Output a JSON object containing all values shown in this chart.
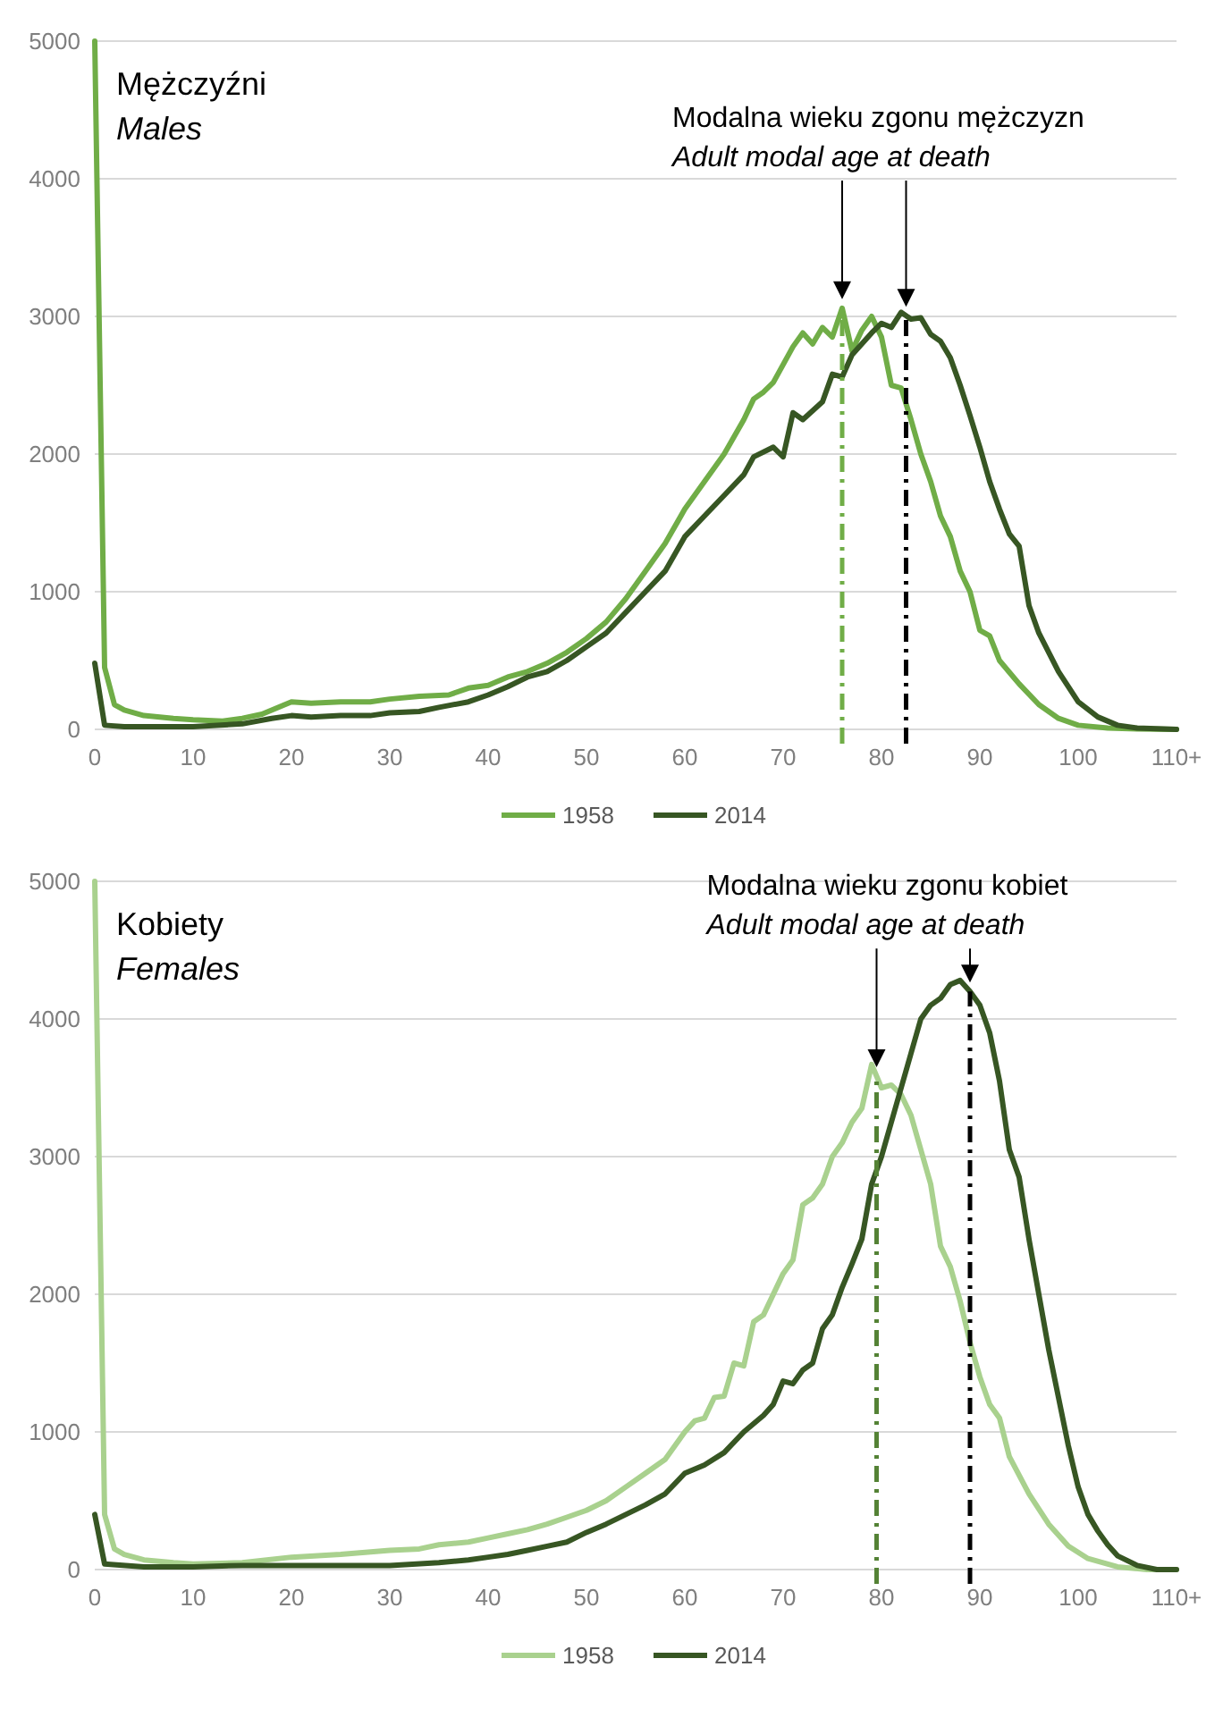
{
  "chart_data": [
    {
      "type": "line",
      "title": "Mężczyźni",
      "subtitle": "Males",
      "annotations": [
        "Modalna wieku zgonu mężczyzn",
        "Adult modal age at death"
      ],
      "xlim": [
        0,
        110
      ],
      "xticks": [
        0,
        10,
        20,
        30,
        40,
        50,
        60,
        70,
        80,
        90,
        100,
        {
          "value": 110,
          "label": "110+"
        }
      ],
      "ylim": [
        0,
        5000
      ],
      "yticks": [
        0,
        1000,
        2000,
        3000,
        4000,
        5000
      ],
      "grid": "y",
      "legend": "bottom",
      "line_style": "solid",
      "marker": "none",
      "series": [
        {
          "name": "1958",
          "color": "#70ad47",
          "x": [
            0,
            1,
            2,
            3,
            5,
            8,
            10,
            13,
            15,
            17,
            20,
            22,
            25,
            28,
            30,
            33,
            36,
            38,
            40,
            42,
            44,
            46,
            48,
            50,
            52,
            54,
            56,
            58,
            60,
            62,
            64,
            66,
            67,
            68,
            69,
            70,
            71,
            72,
            73,
            74,
            75,
            76,
            77,
            78,
            79,
            80,
            81,
            82,
            83,
            84,
            85,
            86,
            87,
            88,
            89,
            90,
            91,
            92,
            94,
            96,
            98,
            100,
            103,
            106,
            110
          ],
          "values": [
            5000,
            450,
            180,
            140,
            100,
            80,
            70,
            60,
            80,
            110,
            200,
            190,
            200,
            200,
            220,
            240,
            250,
            300,
            320,
            380,
            420,
            480,
            560,
            660,
            780,
            950,
            1150,
            1350,
            1600,
            1800,
            2000,
            2250,
            2400,
            2450,
            2520,
            2650,
            2780,
            2880,
            2800,
            2920,
            2850,
            3060,
            2750,
            2900,
            3000,
            2850,
            2500,
            2480,
            2250,
            2000,
            1800,
            1550,
            1400,
            1150,
            1000,
            720,
            680,
            500,
            330,
            180,
            80,
            30,
            10,
            3,
            0
          ]
        },
        {
          "name": "2014",
          "color": "#375623",
          "x": [
            0,
            1,
            3,
            10,
            15,
            18,
            20,
            22,
            25,
            28,
            30,
            33,
            35,
            38,
            40,
            42,
            44,
            46,
            48,
            50,
            52,
            54,
            56,
            58,
            60,
            62,
            64,
            66,
            67,
            69,
            70,
            71,
            72,
            74,
            75,
            76,
            77,
            78,
            79,
            80,
            81,
            82,
            83,
            84,
            85,
            86,
            87,
            88,
            89,
            90,
            91,
            92,
            93,
            94,
            95,
            96,
            98,
            100,
            102,
            104,
            106,
            110
          ],
          "values": [
            480,
            30,
            20,
            20,
            40,
            80,
            100,
            90,
            100,
            100,
            120,
            130,
            160,
            200,
            250,
            310,
            380,
            420,
            500,
            600,
            700,
            850,
            1000,
            1150,
            1400,
            1550,
            1700,
            1850,
            1980,
            2050,
            1980,
            2300,
            2250,
            2380,
            2580,
            2560,
            2720,
            2800,
            2880,
            2950,
            2920,
            3030,
            2980,
            2990,
            2870,
            2820,
            2700,
            2500,
            2280,
            2050,
            1800,
            1600,
            1420,
            1330,
            900,
            700,
            420,
            200,
            90,
            30,
            10,
            0
          ]
        }
      ],
      "ref_lines": [
        {
          "axis": "x",
          "value": 76,
          "color": "#70ad47",
          "line_style": "dashed"
        },
        {
          "axis": "x",
          "value": 82.5,
          "color": "#000000",
          "line_style": "dashed"
        }
      ]
    },
    {
      "type": "line",
      "title": "Kobiety",
      "subtitle": "Females",
      "annotations": [
        "Modalna wieku zgonu kobiet",
        "Adult modal age at death"
      ],
      "xlim": [
        0,
        110
      ],
      "xticks": [
        0,
        10,
        20,
        30,
        40,
        50,
        60,
        70,
        80,
        90,
        100,
        {
          "value": 110,
          "label": "110+"
        }
      ],
      "ylim": [
        0,
        5000
      ],
      "yticks": [
        0,
        1000,
        2000,
        3000,
        4000,
        5000
      ],
      "grid": "y",
      "legend": "bottom",
      "line_style": "solid",
      "marker": "none",
      "series": [
        {
          "name": "1958",
          "color": "#a9d18e",
          "x": [
            0,
            1,
            2,
            3,
            5,
            8,
            10,
            15,
            20,
            25,
            30,
            33,
            35,
            38,
            40,
            42,
            44,
            46,
            48,
            50,
            52,
            54,
            56,
            58,
            60,
            61,
            62,
            63,
            64,
            65,
            66,
            67,
            68,
            70,
            71,
            72,
            73,
            74,
            75,
            76,
            77,
            78,
            79,
            80,
            81,
            82,
            83,
            84,
            85,
            86,
            87,
            88,
            89,
            90,
            91,
            92,
            93,
            95,
            97,
            99,
            101,
            104,
            107,
            110
          ],
          "values": [
            5000,
            400,
            150,
            110,
            70,
            50,
            40,
            50,
            90,
            110,
            140,
            150,
            180,
            200,
            230,
            260,
            290,
            330,
            380,
            430,
            500,
            600,
            700,
            800,
            1000,
            1080,
            1100,
            1250,
            1260,
            1500,
            1480,
            1800,
            1850,
            2150,
            2250,
            2650,
            2700,
            2800,
            3000,
            3100,
            3250,
            3350,
            3670,
            3500,
            3520,
            3450,
            3300,
            3050,
            2800,
            2350,
            2200,
            1950,
            1650,
            1400,
            1200,
            1100,
            820,
            550,
            330,
            170,
            80,
            20,
            0,
            0
          ]
        },
        {
          "name": "2014",
          "color": "#375623",
          "x": [
            0,
            1,
            5,
            10,
            15,
            20,
            30,
            35,
            38,
            40,
            42,
            44,
            46,
            48,
            50,
            52,
            54,
            56,
            58,
            60,
            62,
            64,
            66,
            68,
            69,
            70,
            71,
            72,
            73,
            74,
            75,
            76,
            77,
            78,
            79,
            80,
            81,
            82,
            83,
            84,
            85,
            86,
            87,
            88,
            89,
            90,
            91,
            92,
            93,
            94,
            95,
            96,
            97,
            98,
            99,
            100,
            101,
            102,
            103,
            104,
            106,
            108,
            110
          ],
          "values": [
            400,
            40,
            20,
            20,
            30,
            30,
            30,
            50,
            70,
            90,
            110,
            140,
            170,
            200,
            270,
            330,
            400,
            470,
            550,
            700,
            760,
            850,
            1000,
            1120,
            1200,
            1370,
            1350,
            1450,
            1500,
            1750,
            1850,
            2050,
            2220,
            2400,
            2800,
            3000,
            3250,
            3500,
            3750,
            4000,
            4100,
            4150,
            4250,
            4280,
            4200,
            4100,
            3900,
            3550,
            3050,
            2850,
            2400,
            2000,
            1600,
            1250,
            900,
            600,
            400,
            280,
            180,
            100,
            30,
            0,
            0
          ]
        }
      ],
      "ref_lines": [
        {
          "axis": "x",
          "value": 79.5,
          "color": "#548235",
          "line_style": "dashed"
        },
        {
          "axis": "x",
          "value": 89,
          "color": "#000000",
          "line_style": "dashed"
        }
      ]
    }
  ]
}
